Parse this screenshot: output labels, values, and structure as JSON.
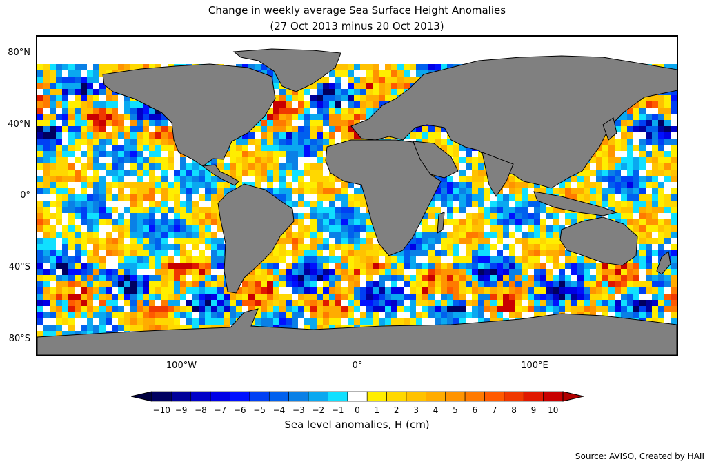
{
  "title_line1": "Change in weekly average Sea Surface Height Anomalies",
  "title_line2": "(27 Oct 2013 minus 20 Oct 2013)",
  "lat_labels": [
    "80°N",
    "40°N",
    "0°",
    "40°S",
    "80°S"
  ],
  "lon_labels": [
    "100°W",
    "0°",
    "100°E"
  ],
  "colorbar": {
    "label": "Sea level anomalies, H (cm)",
    "ticks": [
      "−10",
      "−9",
      "−8",
      "−7",
      "−6",
      "−5",
      "−4",
      "−3",
      "−2",
      "−1",
      "0",
      "1",
      "2",
      "3",
      "4",
      "5",
      "6",
      "7",
      "8",
      "9",
      "10"
    ],
    "colors": [
      "#000060",
      "#00009a",
      "#0000c8",
      "#0000e6",
      "#0010ff",
      "#0040f4",
      "#0060ee",
      "#0a80e6",
      "#0aa8f0",
      "#10e0ff",
      "#ffffff",
      "#ffee00",
      "#ffd800",
      "#ffc200",
      "#ffac00",
      "#ff9400",
      "#ff7a00",
      "#ff5a00",
      "#f03800",
      "#e01800",
      "#c80000"
    ],
    "under_color": "#000040",
    "over_color": "#b00000"
  },
  "map": {
    "land_color": "#808080",
    "lon_range": [
      -180,
      180
    ],
    "lat_range": [
      -90,
      90
    ]
  },
  "source": "Source: AVISO, Created by HAII"
}
